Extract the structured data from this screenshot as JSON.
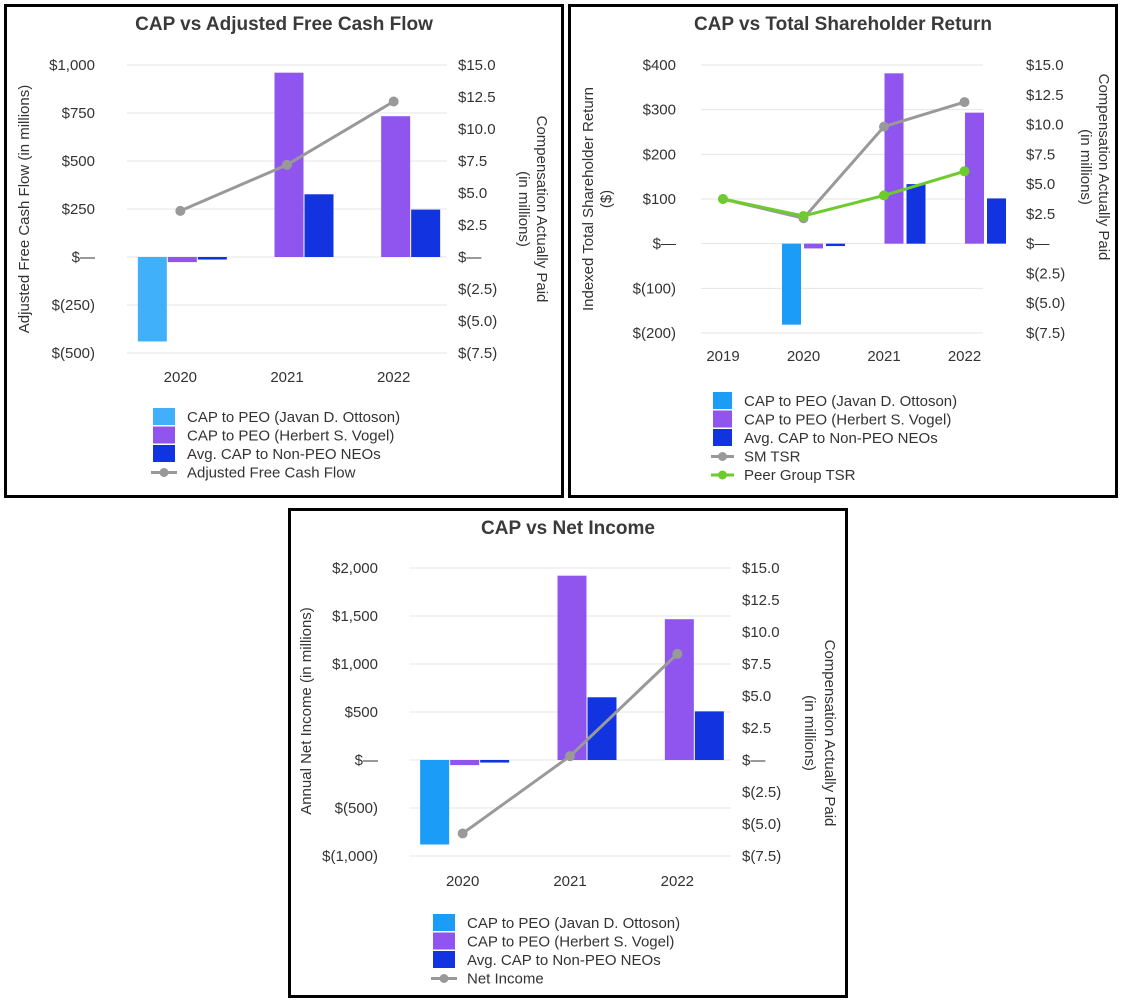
{
  "colors": {
    "ottoson": "#41b0fb",
    "ottoson_tsr": "#1a9cf7",
    "vogel": "#8f55ee",
    "neo": "#1234e0",
    "line_gray": "#999999",
    "peer_green": "#6dcb2c"
  },
  "chart_data": [
    {
      "type": "bar",
      "title": "CAP vs Adjusted Free Cash Flow",
      "ylabel": "Adjusted Free Cash Flow (in millions)",
      "y2label_line1": "Compensation Actually Paid",
      "y2label_line2": "(in millions)",
      "categories": [
        "2020",
        "2021",
        "2022"
      ],
      "ylim": [
        -500,
        1000
      ],
      "yticks": [
        -500,
        -250,
        0,
        250,
        500,
        750,
        1000
      ],
      "ytick_labels": [
        "$(500)",
        "$(250)",
        "$—",
        "$250",
        "$500",
        "$750",
        "$1,000"
      ],
      "y2lim": [
        -7.5,
        15.0
      ],
      "y2ticks": [
        -7.5,
        -5.0,
        -2.5,
        0,
        2.5,
        5.0,
        7.5,
        10.0,
        12.5,
        15.0
      ],
      "y2tick_labels": [
        "$(7.5)",
        "$(5.0)",
        "$(2.5)",
        "$—",
        "$2.5",
        "$5.0",
        "$7.5",
        "$10.0",
        "$12.5",
        "$15.0"
      ],
      "bar_series": [
        {
          "name": "CAP to PEO (Javan D. Ottoson)",
          "color_key": "ottoson",
          "values": [
            -6.6,
            null,
            null
          ]
        },
        {
          "name": "CAP to PEO (Herbert S. Vogel)",
          "color_key": "vogel",
          "values": [
            -0.4,
            14.4,
            11.0
          ]
        },
        {
          "name": "Avg. CAP to Non-PEO NEOs",
          "color_key": "neo",
          "values": [
            -0.2,
            4.9,
            3.7
          ]
        }
      ],
      "line_series": [
        {
          "name": "Adjusted Free Cash Flow",
          "color_key": "line_gray",
          "x": [
            "2020",
            "2021",
            "2022"
          ],
          "values": [
            240,
            480,
            810
          ],
          "axis": "left"
        }
      ],
      "legend": [
        "CAP to PEO (Javan D. Ottoson)",
        "CAP to PEO (Herbert S. Vogel)",
        "Avg. CAP to Non-PEO NEOs",
        "Adjusted Free Cash Flow"
      ]
    },
    {
      "type": "bar",
      "title": "CAP vs Total Shareholder Return",
      "ylabel_line1": "Indexed Total Shareholder Return",
      "ylabel_line2": "($)",
      "y2label_line1": "Compensation Actually Paid",
      "y2label_line2": "(in millions)",
      "categories": [
        "2019",
        "2020",
        "2021",
        "2022"
      ],
      "ylim": [
        -200,
        400
      ],
      "yticks": [
        -200,
        -100,
        0,
        100,
        200,
        300,
        400
      ],
      "ytick_labels": [
        "$(200)",
        "$(100)",
        "$—",
        "$100",
        "$200",
        "$300",
        "$400"
      ],
      "y2lim": [
        -7.5,
        15.0
      ],
      "y2ticks": [
        -7.5,
        -5.0,
        -2.5,
        0,
        2.5,
        5.0,
        7.5,
        10.0,
        12.5,
        15.0
      ],
      "y2tick_labels": [
        "$(7.5)",
        "$(5.0)",
        "$(2.5)",
        "$—",
        "$2.5",
        "$5.0",
        "$7.5",
        "$10.0",
        "$12.5",
        "$15.0"
      ],
      "bar_series": [
        {
          "name": "CAP to PEO (Javan D. Ottoson)",
          "color_key": "ottoson_tsr",
          "values": [
            null,
            -6.8,
            null,
            null
          ]
        },
        {
          "name": "CAP to PEO (Herbert S. Vogel)",
          "color_key": "vogel",
          "values": [
            null,
            -0.4,
            14.3,
            11.0
          ]
        },
        {
          "name": "Avg. CAP to Non-PEO NEOs",
          "color_key": "neo",
          "values": [
            null,
            -0.2,
            5.0,
            3.8
          ]
        }
      ],
      "line_series": [
        {
          "name": "SM TSR",
          "color_key": "line_gray",
          "x": [
            "2019",
            "2020",
            "2021",
            "2022"
          ],
          "values": [
            100,
            57,
            262,
            317
          ],
          "axis": "left"
        },
        {
          "name": "Peer Group TSR",
          "color_key": "peer_green",
          "x": [
            "2019",
            "2020",
            "2021",
            "2022"
          ],
          "values": [
            100,
            62,
            108,
            162
          ],
          "axis": "left"
        }
      ],
      "legend": [
        "CAP to PEO (Javan D. Ottoson)",
        "CAP to PEO (Herbert S. Vogel)",
        "Avg. CAP to Non-PEO NEOs",
        "SM TSR",
        "Peer Group TSR"
      ]
    },
    {
      "type": "bar",
      "title": "CAP vs Net Income",
      "ylabel": "Annual Net Income (in millions)",
      "y2label_line1": "Compensation Actually Paid",
      "y2label_line2": "(in millions)",
      "categories": [
        "2020",
        "2021",
        "2022"
      ],
      "ylim": [
        -1000,
        2000
      ],
      "yticks": [
        -1000,
        -500,
        0,
        500,
        1000,
        1500,
        2000
      ],
      "ytick_labels": [
        "$(1,000)",
        "$(500)",
        "$—",
        "$500",
        "$1,000",
        "$1,500",
        "$2,000"
      ],
      "y2lim": [
        -7.5,
        15.0
      ],
      "y2ticks": [
        -7.5,
        -5.0,
        -2.5,
        0,
        2.5,
        5.0,
        7.5,
        10.0,
        12.5,
        15.0
      ],
      "y2tick_labels": [
        "$(7.5)",
        "$(5.0)",
        "$(2.5)",
        "$—",
        "$2.5",
        "$5.0",
        "$7.5",
        "$10.0",
        "$12.5",
        "$15.0"
      ],
      "bar_series": [
        {
          "name": "CAP to PEO (Javan D. Ottoson)",
          "color_key": "ottoson_tsr",
          "values": [
            -6.6,
            null,
            null
          ]
        },
        {
          "name": "CAP to PEO (Herbert S. Vogel)",
          "color_key": "vogel",
          "values": [
            -0.4,
            14.4,
            11.0
          ]
        },
        {
          "name": "Avg. CAP to Non-PEO NEOs",
          "color_key": "neo",
          "values": [
            -0.2,
            4.9,
            3.8
          ]
        }
      ],
      "line_series": [
        {
          "name": "Net Income",
          "color_key": "line_gray",
          "x": [
            "2020",
            "2021",
            "2022"
          ],
          "values": [
            -765,
            40,
            1105
          ],
          "axis": "left"
        }
      ],
      "legend": [
        "CAP to PEO (Javan D. Ottoson)",
        "CAP to PEO (Herbert S. Vogel)",
        "Avg. CAP to Non-PEO NEOs",
        "Net Income"
      ]
    }
  ]
}
